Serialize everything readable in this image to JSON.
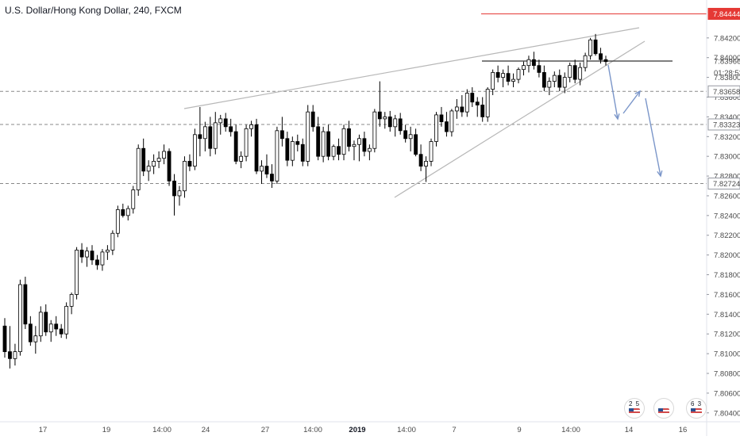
{
  "chart_data": {
    "type": "candlestick",
    "title": "U.S. Dollar/Hong Kong Dollar, 240, FXCM",
    "x_ticks": [
      {
        "label": "17",
        "bold": false
      },
      {
        "label": "19",
        "bold": false
      },
      {
        "label": "14:00",
        "bold": false
      },
      {
        "label": "24",
        "bold": false
      },
      {
        "label": "27",
        "bold": false
      },
      {
        "label": "14:00",
        "bold": false
      },
      {
        "label": "2019",
        "bold": true
      },
      {
        "label": "14:00",
        "bold": false
      },
      {
        "label": "7",
        "bold": false
      },
      {
        "label": "9",
        "bold": false
      },
      {
        "label": "14:00",
        "bold": false
      },
      {
        "label": "14",
        "bold": false
      },
      {
        "label": "16",
        "bold": false
      }
    ],
    "y_ticks": [
      "7.84200",
      "7.84000",
      "7.83800",
      "7.83600",
      "7.83400",
      "7.83200",
      "7.83000",
      "7.82800",
      "7.82600",
      "7.82400",
      "7.82200",
      "7.82000",
      "7.81800",
      "7.81600",
      "7.81400",
      "7.81200",
      "7.81000",
      "7.80800",
      "7.80600",
      "7.80400"
    ],
    "ylim": [
      7.8035,
      7.8452
    ],
    "candles": [
      [
        7.8128,
        7.8136,
        7.8096,
        7.8102
      ],
      [
        7.8102,
        7.8128,
        7.8085,
        7.8095
      ],
      [
        7.8095,
        7.811,
        7.8088,
        7.8102
      ],
      [
        7.8102,
        7.8175,
        7.8098,
        7.817
      ],
      [
        7.817,
        7.8178,
        7.8125,
        7.813
      ],
      [
        7.813,
        7.8138,
        7.8108,
        7.8112
      ],
      [
        7.8112,
        7.8128,
        7.81,
        7.8118
      ],
      [
        7.8118,
        7.8148,
        7.8112,
        7.8142
      ],
      [
        7.8142,
        7.815,
        7.8118,
        7.8122
      ],
      [
        7.8122,
        7.8134,
        7.8112,
        7.813
      ],
      [
        7.813,
        7.8138,
        7.8118,
        7.8125
      ],
      [
        7.8125,
        7.813,
        7.8116,
        7.812
      ],
      [
        7.812,
        7.8152,
        7.8115,
        7.8148
      ],
      [
        7.8148,
        7.8162,
        7.814,
        7.816
      ],
      [
        7.816,
        7.8208,
        7.8155,
        7.8205
      ],
      [
        7.8205,
        7.8212,
        7.8192,
        7.8198
      ],
      [
        7.8198,
        7.8208,
        7.8188,
        7.8204
      ],
      [
        7.8204,
        7.821,
        7.819,
        7.8195
      ],
      [
        7.8195,
        7.82,
        7.8185,
        7.819
      ],
      [
        7.819,
        7.8206,
        7.8184,
        7.8203
      ],
      [
        7.8203,
        7.821,
        7.8195,
        7.8205
      ],
      [
        7.8205,
        7.8225,
        7.82,
        7.8222
      ],
      [
        7.8222,
        7.825,
        7.8218,
        7.8246
      ],
      [
        7.8246,
        7.8252,
        7.8238,
        7.824
      ],
      [
        7.824,
        7.825,
        7.8235,
        7.8247
      ],
      [
        7.8247,
        7.827,
        7.8242,
        7.8266
      ],
      [
        7.8266,
        7.8312,
        7.826,
        7.8308
      ],
      [
        7.8308,
        7.8318,
        7.828,
        7.8285
      ],
      [
        7.8285,
        7.8296,
        7.8275,
        7.829
      ],
      [
        7.829,
        7.8302,
        7.8282,
        7.8295
      ],
      [
        7.8295,
        7.8305,
        7.8288,
        7.8298
      ],
      [
        7.8298,
        7.8312,
        7.8292,
        7.8305
      ],
      [
        7.8305,
        7.8308,
        7.827,
        7.8275
      ],
      [
        7.8275,
        7.8282,
        7.824,
        7.826
      ],
      [
        7.826,
        7.827,
        7.825,
        7.8265
      ],
      [
        7.8265,
        7.83,
        7.8258,
        7.8295
      ],
      [
        7.8295,
        7.8302,
        7.8285,
        7.829
      ],
      [
        7.829,
        7.8328,
        7.8286,
        7.8322
      ],
      [
        7.8322,
        7.835,
        7.83,
        7.8318
      ],
      [
        7.8318,
        7.8335,
        7.8305,
        7.833
      ],
      [
        7.833,
        7.834,
        7.83,
        7.8308
      ],
      [
        7.8308,
        7.8345,
        7.8302,
        7.8334
      ],
      [
        7.8334,
        7.8342,
        7.8322,
        7.8338
      ],
      [
        7.8338,
        7.8344,
        7.8325,
        7.833
      ],
      [
        7.833,
        7.8338,
        7.832,
        7.8325
      ],
      [
        7.8325,
        7.8332,
        7.8292,
        7.8295
      ],
      [
        7.8295,
        7.8305,
        7.8288,
        7.83
      ],
      [
        7.83,
        7.8332,
        7.8295,
        7.8328
      ],
      [
        7.8328,
        7.8336,
        7.832,
        7.8332
      ],
      [
        7.8332,
        7.8338,
        7.8282,
        7.8285
      ],
      [
        7.8285,
        7.8296,
        7.8272,
        7.829
      ],
      [
        7.829,
        7.8302,
        7.8278,
        7.8282
      ],
      [
        7.8282,
        7.8292,
        7.8268,
        7.8275
      ],
      [
        7.8275,
        7.833,
        7.8272,
        7.8326
      ],
      [
        7.8326,
        7.834,
        7.831,
        7.8318
      ],
      [
        7.8318,
        7.8325,
        7.829,
        7.8296
      ],
      [
        7.8296,
        7.832,
        7.829,
        7.8315
      ],
      [
        7.8315,
        7.8322,
        7.8305,
        7.8312
      ],
      [
        7.8312,
        7.8318,
        7.829,
        7.8295
      ],
      [
        7.8295,
        7.8352,
        7.829,
        7.8345
      ],
      [
        7.8345,
        7.8352,
        7.8325,
        7.833
      ],
      [
        7.833,
        7.834,
        7.8296,
        7.83
      ],
      [
        7.83,
        7.833,
        7.8294,
        7.8325
      ],
      [
        7.8325,
        7.8332,
        7.8296,
        7.83
      ],
      [
        7.83,
        7.8312,
        7.8296,
        7.831
      ],
      [
        7.831,
        7.8318,
        7.8296,
        7.8302
      ],
      [
        7.8302,
        7.8332,
        7.8296,
        7.8328
      ],
      [
        7.8328,
        7.8336,
        7.8305,
        7.831
      ],
      [
        7.831,
        7.8316,
        7.8296,
        7.8312
      ],
      [
        7.8312,
        7.8322,
        7.8295,
        7.8318
      ],
      [
        7.8318,
        7.8325,
        7.83,
        7.8305
      ],
      [
        7.8305,
        7.8312,
        7.8296,
        7.8308
      ],
      [
        7.8308,
        7.8348,
        7.8304,
        7.8345
      ],
      [
        7.8345,
        7.8376,
        7.833,
        7.8338
      ],
      [
        7.8338,
        7.8345,
        7.8328,
        7.834
      ],
      [
        7.834,
        7.8346,
        7.8325,
        7.833
      ],
      [
        7.833,
        7.8342,
        7.832,
        7.8338
      ],
      [
        7.8338,
        7.8344,
        7.8322,
        7.8326
      ],
      [
        7.8326,
        7.8332,
        7.8314,
        7.8318
      ],
      [
        7.8318,
        7.833,
        7.8305,
        7.8322
      ],
      [
        7.8322,
        7.8328,
        7.83,
        7.8302
      ],
      [
        7.8302,
        7.8312,
        7.8285,
        7.829
      ],
      [
        7.829,
        7.83,
        7.8274,
        7.8295
      ],
      [
        7.8295,
        7.8318,
        7.829,
        7.8315
      ],
      [
        7.8315,
        7.8345,
        7.831,
        7.8342
      ],
      [
        7.8342,
        7.835,
        7.833,
        7.8335
      ],
      [
        7.8335,
        7.8345,
        7.832,
        7.8325
      ],
      [
        7.8325,
        7.8348,
        7.832,
        7.8346
      ],
      [
        7.8346,
        7.8358,
        7.8338,
        7.835
      ],
      [
        7.835,
        7.8362,
        7.834,
        7.8345
      ],
      [
        7.8345,
        7.8368,
        7.834,
        7.8364
      ],
      [
        7.8364,
        7.837,
        7.835,
        7.8355
      ],
      [
        7.8355,
        7.836,
        7.834,
        7.8352
      ],
      [
        7.8352,
        7.836,
        7.8335,
        7.834
      ],
      [
        7.834,
        7.837,
        7.8335,
        7.8368
      ],
      [
        7.8368,
        7.8388,
        7.8362,
        7.8385
      ],
      [
        7.8385,
        7.8392,
        7.8375,
        7.838
      ],
      [
        7.838,
        7.8388,
        7.837,
        7.8384
      ],
      [
        7.8384,
        7.8392,
        7.8372,
        7.8376
      ],
      [
        7.8376,
        7.8384,
        7.837,
        7.8378
      ],
      [
        7.8378,
        7.839,
        7.8374,
        7.8388
      ],
      [
        7.8388,
        7.8396,
        7.8382,
        7.8392
      ],
      [
        7.8392,
        7.8402,
        7.8385,
        7.8398
      ],
      [
        7.8398,
        7.8406,
        7.8388,
        7.8392
      ],
      [
        7.8392,
        7.8398,
        7.838,
        7.8385
      ],
      [
        7.8385,
        7.8392,
        7.8366,
        7.837
      ],
      [
        7.837,
        7.838,
        7.8362,
        7.8376
      ],
      [
        7.8376,
        7.8386,
        7.837,
        7.8382
      ],
      [
        7.8382,
        7.8388,
        7.8366,
        7.837
      ],
      [
        7.837,
        7.8385,
        7.8364,
        7.838
      ],
      [
        7.838,
        7.8395,
        7.8375,
        7.8392
      ],
      [
        7.8392,
        7.8398,
        7.8374,
        7.8378
      ],
      [
        7.8378,
        7.8395,
        7.8372,
        7.839
      ],
      [
        7.839,
        7.8405,
        7.8386,
        7.8402
      ],
      [
        7.8402,
        7.842,
        7.8398,
        7.8418
      ],
      [
        7.8418,
        7.8424,
        7.8402,
        7.8404
      ],
      [
        7.8404,
        7.841,
        7.8394,
        7.8398
      ],
      [
        7.8398,
        7.8402,
        7.8392,
        7.8396
      ]
    ],
    "price_lines": [
      {
        "value": 7.84444,
        "label": "7.84444",
        "color": "#e53935",
        "style": "solid"
      },
      {
        "value": 7.83658,
        "label": "7.83658",
        "color": "#888888",
        "style": "dashed"
      },
      {
        "value": 7.83323,
        "label": "7.83323",
        "color": "#888888",
        "style": "dashed"
      },
      {
        "value": 7.82724,
        "label": "7.82724",
        "color": "#888888",
        "style": "dashed"
      }
    ],
    "countdown_label": "01:28:53",
    "current_price_label": "7.83966",
    "bull_color": "#ffffff",
    "bear_color": "#000000",
    "trendline_color": "#b7b7b7",
    "arrow_color": "#7b96c9"
  },
  "events": [
    {
      "label": "2 5"
    },
    {
      "label": ""
    },
    {
      "label": "6 3"
    }
  ]
}
